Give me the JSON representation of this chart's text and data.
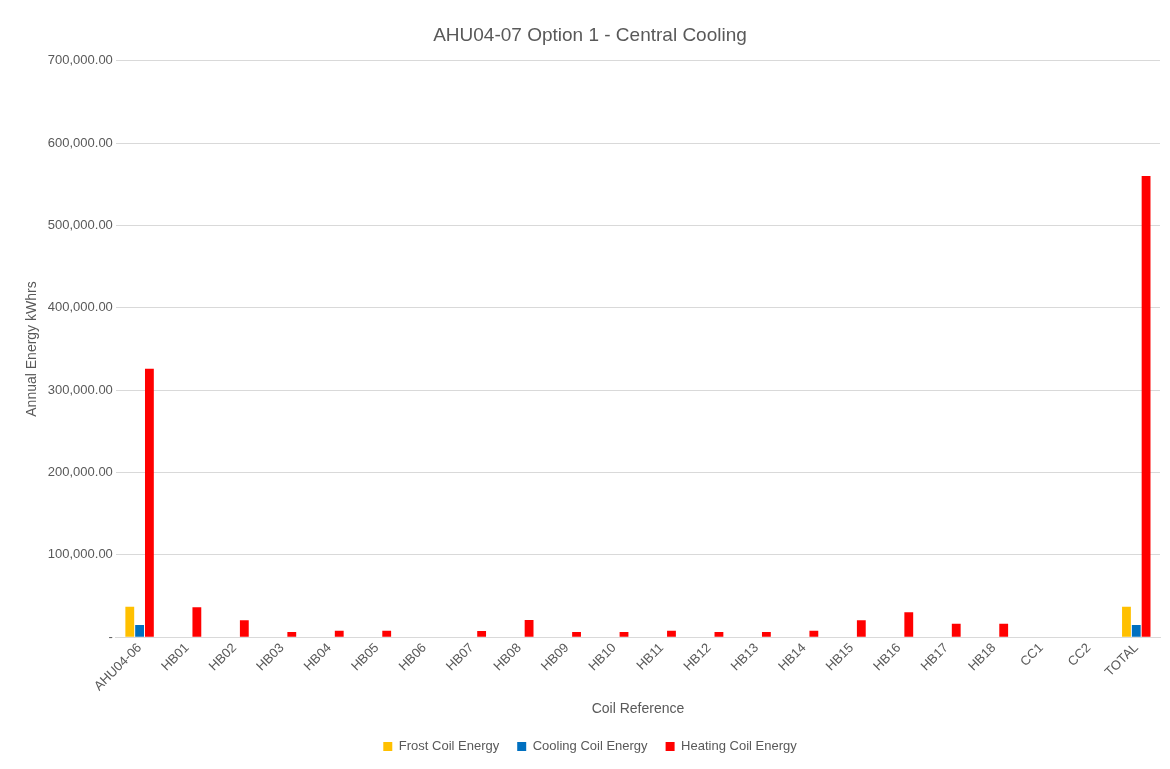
{
  "chart_data": {
    "type": "bar",
    "title": "AHU04-07 Option 1 - Central Cooling",
    "xlabel": "Coil Reference",
    "ylabel": "Annual Energy kWhrs",
    "categories": [
      "AHU04-06",
      "HB01",
      "HB02",
      "HB03",
      "HB04",
      "HB05",
      "HB06",
      "HB07",
      "HB08",
      "HB09",
      "HB10",
      "HB11",
      "HB12",
      "HB13",
      "HB14",
      "HB15",
      "HB16",
      "HB17",
      "HB18",
      "CC1",
      "CC2",
      "TOTAL"
    ],
    "series": [
      {
        "name": "Frost Coil Energy",
        "color": "#ffc000",
        "values": [
          37000,
          0,
          0,
          0,
          0,
          0,
          0,
          0,
          0,
          0,
          0,
          0,
          0,
          0,
          0,
          0,
          0,
          0,
          0,
          0,
          0,
          37000
        ]
      },
      {
        "name": "Cooling Coil Energy",
        "color": "#0070c0",
        "values": [
          15000,
          0,
          0,
          0,
          0,
          0,
          0,
          0,
          0,
          0,
          0,
          0,
          0,
          0,
          0,
          0,
          0,
          0,
          0,
          0,
          0,
          15000
        ]
      },
      {
        "name": "Heating Coil Energy",
        "color": "#ff0000",
        "values": [
          326000,
          36500,
          20500,
          6500,
          8000,
          8000,
          0,
          7500,
          21000,
          6500,
          6500,
          8000,
          6500,
          6500,
          8000,
          20500,
          30500,
          16500,
          16500,
          0,
          0,
          560000
        ]
      }
    ],
    "ylim": [
      0,
      700000
    ],
    "yticks": [
      {
        "value": 0,
        "label": "-"
      },
      {
        "value": 100000,
        "label": "100,000.00"
      },
      {
        "value": 200000,
        "label": "200,000.00"
      },
      {
        "value": 300000,
        "label": "300,000.00"
      },
      {
        "value": 400000,
        "label": "400,000.00"
      },
      {
        "value": 500000,
        "label": "500,000.00"
      },
      {
        "value": 600000,
        "label": "600,000.00"
      },
      {
        "value": 700000,
        "label": "700,000.00"
      }
    ],
    "grid": "y",
    "legend": "bottom"
  }
}
